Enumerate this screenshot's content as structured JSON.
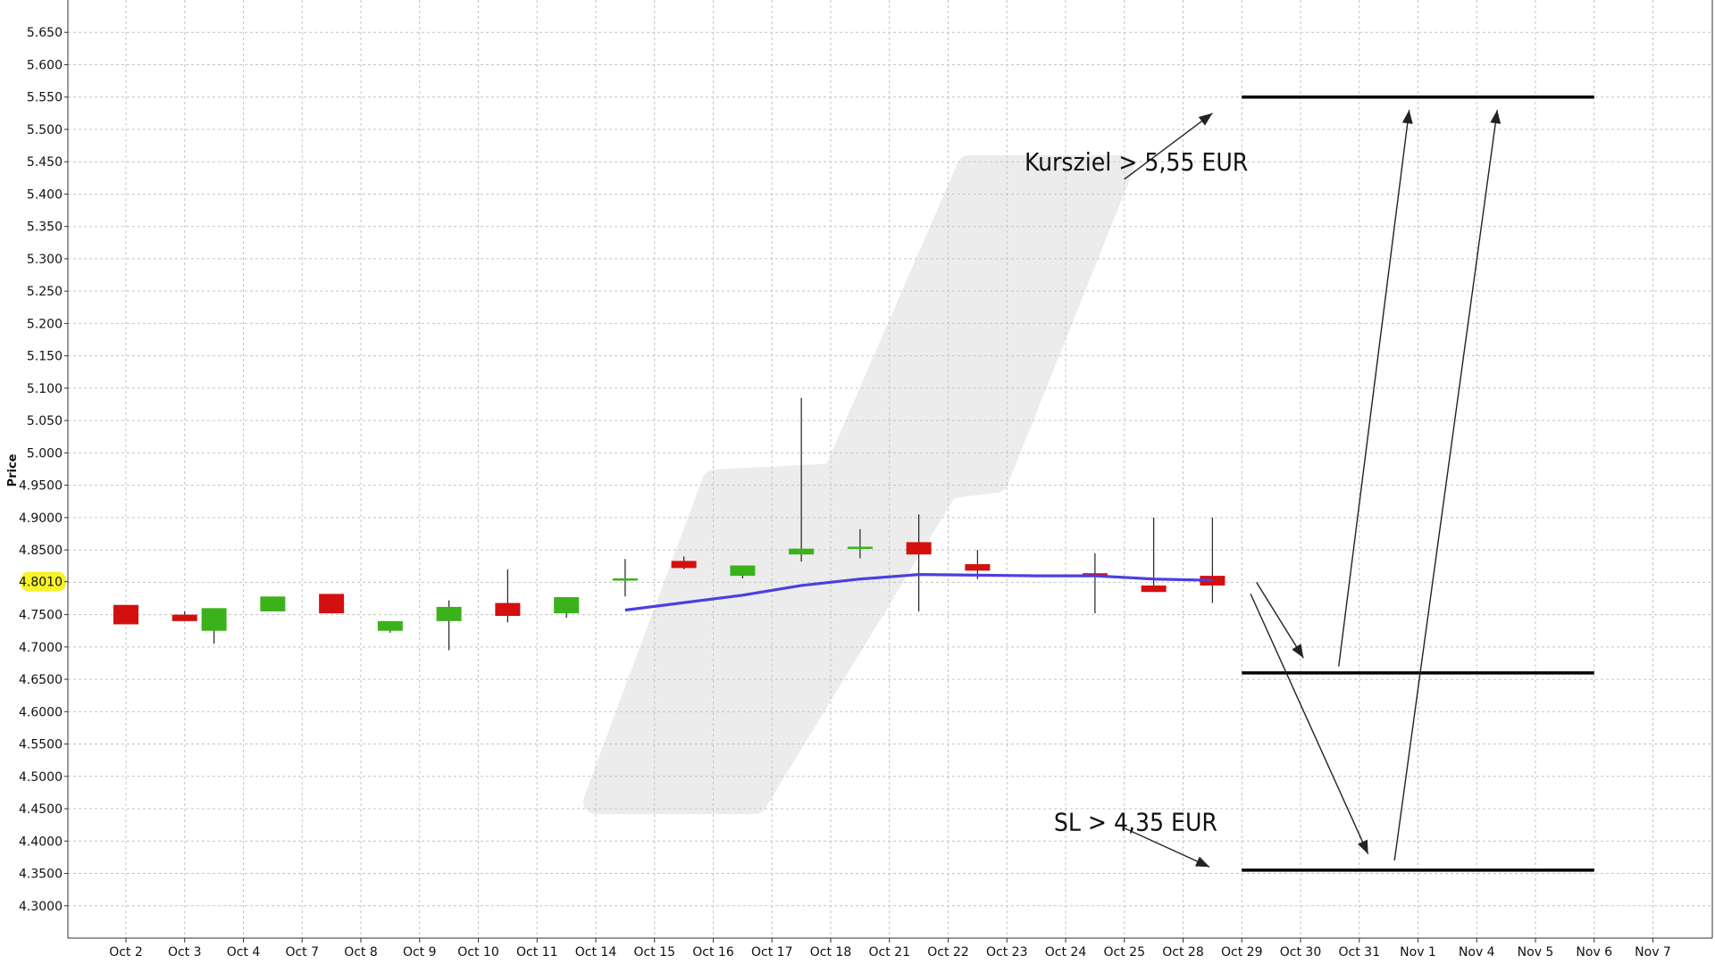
{
  "chart_data": {
    "type": "candlestick",
    "ylabel": "Price",
    "ylim": [
      4.25,
      5.7
    ],
    "y_ticks": [
      "5.650",
      "5.600",
      "5.550",
      "5.500",
      "5.450",
      "5.400",
      "5.350",
      "5.300",
      "5.250",
      "5.200",
      "5.150",
      "5.100",
      "5.050",
      "5.000",
      "4.9500",
      "4.9000",
      "4.8500",
      "4.8010",
      "4.7500",
      "4.7000",
      "4.6500",
      "4.6000",
      "4.5500",
      "4.5000",
      "4.4500",
      "4.4000",
      "4.3500",
      "4.3000"
    ],
    "current_price_label": "4.8010",
    "current_price": 4.801,
    "grid": true,
    "categories": [
      "Oct 2",
      "Oct 3",
      "Oct 4",
      "Oct 7",
      "Oct 8",
      "Oct 9",
      "Oct 10",
      "Oct 11",
      "Oct 14",
      "Oct 15",
      "Oct 16",
      "Oct 17",
      "Oct 18",
      "Oct 21",
      "Oct 22",
      "Oct 23",
      "Oct 24",
      "Oct 25",
      "Oct 28",
      "Oct 29",
      "Oct 30",
      "Oct 31",
      "Nov 1",
      "Nov 4",
      "Nov 5",
      "Nov 6",
      "Nov 7"
    ],
    "candles": [
      {
        "date": "Oct 2",
        "open": 4.765,
        "high": 4.765,
        "low": 4.735,
        "close": 4.735,
        "color": "down"
      },
      {
        "date": "Oct 3",
        "open": 4.75,
        "high": 4.755,
        "low": 4.74,
        "close": 4.74,
        "color": "down"
      },
      {
        "date": "Oct 4",
        "open": 4.725,
        "high": 4.76,
        "low": 4.705,
        "close": 4.76,
        "color": "up"
      },
      {
        "date": "Oct 7",
        "open": 4.755,
        "high": 4.778,
        "low": 4.755,
        "close": 4.778,
        "color": "up"
      },
      {
        "date": "Oct 8",
        "open": 4.782,
        "high": 4.782,
        "low": 4.752,
        "close": 4.752,
        "color": "down"
      },
      {
        "date": "Oct 9",
        "open": 4.725,
        "high": 4.74,
        "low": 4.722,
        "close": 4.74,
        "color": "up"
      },
      {
        "date": "Oct 10",
        "open": 4.74,
        "high": 4.772,
        "low": 4.695,
        "close": 4.762,
        "color": "up"
      },
      {
        "date": "Oct 11",
        "open": 4.768,
        "high": 4.82,
        "low": 4.738,
        "close": 4.748,
        "color": "down"
      },
      {
        "date": "Oct 14",
        "open": 4.752,
        "high": 4.777,
        "low": 4.745,
        "close": 4.777,
        "color": "up"
      },
      {
        "date": "Oct 15",
        "open": 4.803,
        "high": 4.836,
        "low": 4.778,
        "close": 4.806,
        "color": "up"
      },
      {
        "date": "Oct 16",
        "open": 4.833,
        "high": 4.84,
        "low": 4.82,
        "close": 4.822,
        "color": "down"
      },
      {
        "date": "Oct 17",
        "open": 4.81,
        "high": 4.826,
        "low": 4.806,
        "close": 4.826,
        "color": "up"
      },
      {
        "date": "Oct 18",
        "open": 4.843,
        "high": 5.085,
        "low": 4.832,
        "close": 4.852,
        "color": "up"
      },
      {
        "date": "Oct 21",
        "open": 4.852,
        "high": 4.882,
        "low": 4.837,
        "close": 4.855,
        "color": "up"
      },
      {
        "date": "Oct 22",
        "open": 4.862,
        "high": 4.905,
        "low": 4.755,
        "close": 4.843,
        "color": "down"
      },
      {
        "date": "Oct 23",
        "open": 4.828,
        "high": 4.85,
        "low": 4.805,
        "close": 4.818,
        "color": "down"
      },
      {
        "date": "Oct 25",
        "open": 4.814,
        "high": 4.845,
        "low": 4.752,
        "close": 4.81,
        "color": "down"
      },
      {
        "date": "Oct 28",
        "open": 4.795,
        "high": 4.9,
        "low": 4.785,
        "close": 4.785,
        "color": "down"
      },
      {
        "date": "Oct 29",
        "open": 4.81,
        "high": 4.9,
        "low": 4.768,
        "close": 4.795,
        "color": "down"
      }
    ],
    "candle_x": [
      0.0,
      1.0,
      1.5,
      2.5,
      3.5,
      4.5,
      5.5,
      6.5,
      7.5,
      8.5,
      9.5,
      10.5,
      11.5,
      12.5,
      13.5,
      14.5,
      16.5,
      17.5,
      18.5
    ],
    "moving_average": {
      "color": "#4b3fe0",
      "x": [
        8.5,
        10.5,
        11.5,
        12.5,
        13.5,
        14.5,
        15.5,
        16.5,
        17.5,
        18.5
      ],
      "values": [
        4.757,
        4.78,
        4.795,
        4.805,
        4.812,
        4.811,
        4.81,
        4.81,
        4.805,
        4.803
      ]
    },
    "levels": [
      {
        "value": 5.55,
        "x_start": 19.0,
        "x_end": 25.0
      },
      {
        "value": 4.66,
        "x_start": 19.0,
        "x_end": 25.0
      },
      {
        "value": 4.355,
        "x_start": 19.0,
        "x_end": 25.0
      }
    ],
    "arrows": [
      {
        "from": [
          17.0,
          5.423
        ],
        "to": [
          18.5,
          5.525
        ]
      },
      {
        "from": [
          17.0,
          4.42
        ],
        "to": [
          18.45,
          4.36
        ]
      },
      {
        "from": [
          19.25,
          4.8
        ],
        "to": [
          20.05,
          4.683
        ]
      },
      {
        "from": [
          19.15,
          4.782
        ],
        "to": [
          21.15,
          4.38
        ]
      },
      {
        "from": [
          20.65,
          4.67
        ],
        "to": [
          21.85,
          5.53
        ]
      },
      {
        "from": [
          21.6,
          4.37
        ],
        "to": [
          23.35,
          5.53
        ]
      }
    ],
    "annotations": [
      {
        "text": "Kursziel > 5,55 EUR",
        "x": 15.3,
        "y": 5.45
      },
      {
        "text": "SL > 4,35 EUR",
        "x": 15.8,
        "y": 4.43
      }
    ],
    "colors": {
      "up": "#3bb21b",
      "down": "#d30f0f",
      "grid": "#c4c4c4",
      "highlight": "#f7f22a",
      "watermark": "#ececec"
    }
  }
}
